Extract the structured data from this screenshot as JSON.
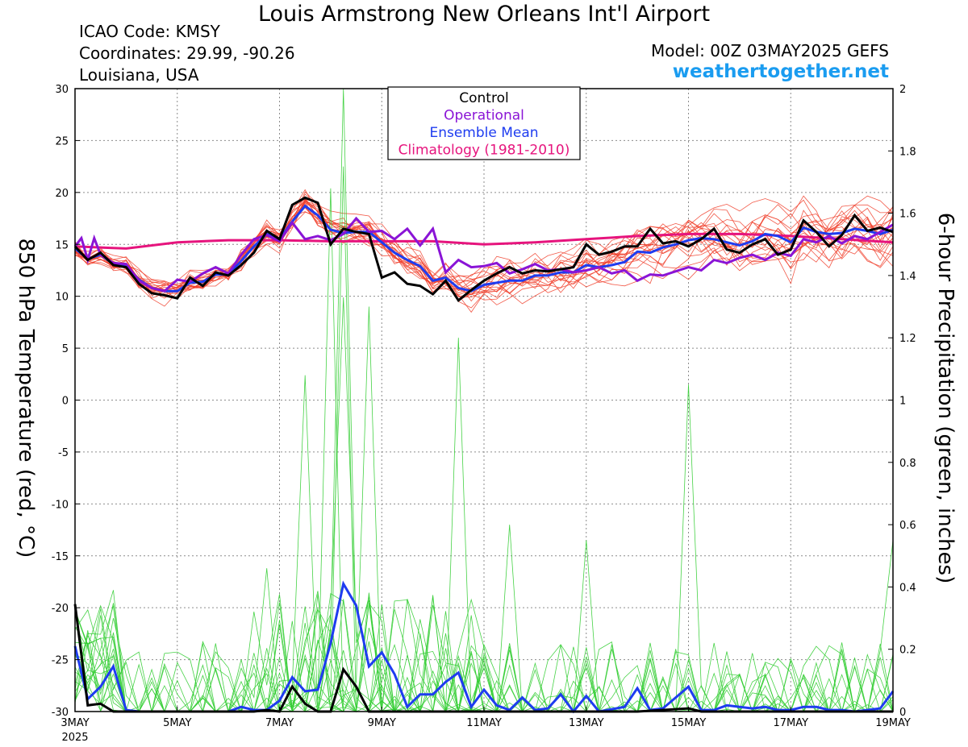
{
  "header": {
    "title": "Louis Armstrong New Orleans Int'l Airport",
    "icao": "ICAO Code: KMSY",
    "coords": "Coordinates: 29.99, -90.26",
    "region": "Louisiana, USA",
    "model": "Model: 00Z 03MAY2025 GEFS",
    "site": "weathertogether.net"
  },
  "chart_data": {
    "type": "line",
    "x_unit": "days since 3 May 2025 00Z",
    "xlim": [
      0,
      16
    ],
    "x_ticks": [
      {
        "x": 0,
        "label": "3MAY",
        "sub": "2025"
      },
      {
        "x": 2,
        "label": "5MAY"
      },
      {
        "x": 4,
        "label": "7MAY"
      },
      {
        "x": 6,
        "label": "9MAY"
      },
      {
        "x": 8,
        "label": "11MAY"
      },
      {
        "x": 10,
        "label": "13MAY"
      },
      {
        "x": 12,
        "label": "15MAY"
      },
      {
        "x": 14,
        "label": "17MAY"
      },
      {
        "x": 16,
        "label": "19MAY"
      }
    ],
    "y_left": {
      "label": "850 hPa Temperature (red, °C)",
      "lim": [
        -30,
        30
      ],
      "ticks": [
        -30,
        -25,
        -20,
        -15,
        -10,
        -5,
        0,
        5,
        10,
        15,
        20,
        25,
        30
      ]
    },
    "y_right": {
      "label": "6-hour Precipitation (green, inches)",
      "lim": [
        0,
        2
      ],
      "ticks": [
        "0",
        "0.2",
        "0.4",
        "0.6",
        "0.8",
        "1",
        "1.2",
        "1.4",
        "1.6",
        "1.8",
        "2"
      ]
    },
    "grid": true,
    "legend": {
      "position": "top-center",
      "entries": [
        {
          "name": "Control",
          "color": "#000000"
        },
        {
          "name": "Operational",
          "color": "#8a14d6"
        },
        {
          "name": "Ensemble Mean",
          "color": "#1e3cf0"
        },
        {
          "name": "Climatology (1981-2010)",
          "color": "#e6147d"
        }
      ]
    },
    "colors": {
      "ensemble_temp": "#f03c28",
      "ensemble_precip": "#32cd32",
      "control": "#000000",
      "operational": "#8a14d6",
      "mean": "#1e3cf0",
      "climatology": "#e6147d"
    },
    "temperature": {
      "control": [
        [
          0,
          14.8
        ],
        [
          0.25,
          13.5
        ],
        [
          0.5,
          14.2
        ],
        [
          0.75,
          13
        ],
        [
          1,
          12.8
        ],
        [
          1.25,
          11.2
        ],
        [
          1.5,
          10.3
        ],
        [
          1.75,
          10.1
        ],
        [
          2,
          9.8
        ],
        [
          2.25,
          11.8
        ],
        [
          2.5,
          11
        ],
        [
          2.75,
          12.3
        ],
        [
          3,
          12
        ],
        [
          3.25,
          13
        ],
        [
          3.5,
          14.2
        ],
        [
          3.75,
          16.3
        ],
        [
          4,
          15.5
        ],
        [
          4.25,
          18.8
        ],
        [
          4.5,
          19.5
        ],
        [
          4.75,
          19
        ],
        [
          5,
          15
        ],
        [
          5.25,
          16.5
        ],
        [
          5.5,
          16.2
        ],
        [
          5.75,
          16
        ],
        [
          6,
          11.8
        ],
        [
          6.25,
          12.3
        ],
        [
          6.5,
          11.2
        ],
        [
          6.75,
          11
        ],
        [
          7,
          10.2
        ],
        [
          7.25,
          11.5
        ],
        [
          7.5,
          9.6
        ],
        [
          7.75,
          10.6
        ],
        [
          8,
          11.5
        ],
        [
          8.25,
          12.2
        ],
        [
          8.5,
          12.8
        ],
        [
          8.75,
          12.2
        ],
        [
          9,
          12.5
        ],
        [
          9.25,
          12.4
        ],
        [
          9.5,
          12.6
        ],
        [
          9.75,
          12.8
        ],
        [
          10,
          15
        ],
        [
          10.25,
          14
        ],
        [
          10.5,
          14.3
        ],
        [
          10.75,
          14.8
        ],
        [
          11,
          14.8
        ],
        [
          11.25,
          16.5
        ],
        [
          11.5,
          15.1
        ],
        [
          11.75,
          15.3
        ],
        [
          12,
          14.8
        ],
        [
          12.25,
          15.5
        ],
        [
          12.5,
          16.5
        ],
        [
          12.75,
          14.5
        ],
        [
          13,
          14.2
        ],
        [
          13.25,
          15
        ],
        [
          13.5,
          15.5
        ],
        [
          13.75,
          14
        ],
        [
          14,
          14.5
        ],
        [
          14.25,
          17.3
        ],
        [
          14.5,
          16.2
        ],
        [
          14.75,
          14.8
        ],
        [
          15,
          15.9
        ],
        [
          15.25,
          17.8
        ],
        [
          15.5,
          16.3
        ],
        [
          15.75,
          16.6
        ],
        [
          16,
          16.2
        ]
      ],
      "operational": [
        [
          0,
          14.8
        ],
        [
          0.125,
          15.6
        ],
        [
          0.25,
          13.5
        ],
        [
          0.375,
          15.6
        ],
        [
          0.5,
          14
        ],
        [
          0.75,
          13.2
        ],
        [
          1,
          13.1
        ],
        [
          1.25,
          11.5
        ],
        [
          1.5,
          10.8
        ],
        [
          1.75,
          10.5
        ],
        [
          2,
          11.6
        ],
        [
          2.25,
          11.4
        ],
        [
          2.5,
          12.2
        ],
        [
          2.75,
          12.8
        ],
        [
          3,
          12.2
        ],
        [
          3.25,
          14
        ],
        [
          3.5,
          15.5
        ],
        [
          3.75,
          15.9
        ],
        [
          4,
          15.3
        ],
        [
          4.25,
          17.1
        ],
        [
          4.5,
          15.5
        ],
        [
          4.75,
          15.8
        ],
        [
          5,
          15.4
        ],
        [
          5.25,
          16
        ],
        [
          5.5,
          17.5
        ],
        [
          5.75,
          16.2
        ],
        [
          6,
          16.3
        ],
        [
          6.25,
          15.5
        ],
        [
          6.5,
          16.5
        ],
        [
          6.75,
          14.9
        ],
        [
          7,
          16.5
        ],
        [
          7.25,
          12.3
        ],
        [
          7.5,
          13.5
        ],
        [
          7.75,
          12.8
        ],
        [
          8,
          12.9
        ],
        [
          8.25,
          13.2
        ],
        [
          8.5,
          12.2
        ],
        [
          8.75,
          12.6
        ],
        [
          9,
          13.1
        ],
        [
          9.25,
          12.5
        ],
        [
          9.5,
          12.6
        ],
        [
          9.75,
          12.3
        ],
        [
          10,
          12.5
        ],
        [
          10.25,
          12.8
        ],
        [
          10.5,
          12.2
        ],
        [
          10.75,
          12.5
        ],
        [
          11,
          11.5
        ],
        [
          11.25,
          12.1
        ],
        [
          11.5,
          12
        ],
        [
          11.75,
          12.4
        ],
        [
          12,
          12.8
        ],
        [
          12.25,
          12.5
        ],
        [
          12.5,
          13.5
        ],
        [
          12.75,
          13.2
        ],
        [
          13,
          13.7
        ],
        [
          13.25,
          14
        ],
        [
          13.5,
          13.5
        ],
        [
          13.75,
          14.2
        ],
        [
          14,
          13.9
        ],
        [
          14.25,
          15.5
        ],
        [
          14.5,
          15.2
        ],
        [
          14.75,
          15.8
        ],
        [
          15,
          15.1
        ],
        [
          15.25,
          15.8
        ],
        [
          15.5,
          15.5
        ],
        [
          15.75,
          16.2
        ],
        [
          16,
          16.9
        ]
      ],
      "mean": [
        [
          0,
          14.6
        ],
        [
          0.25,
          13.6
        ],
        [
          0.5,
          14
        ],
        [
          0.75,
          13.1
        ],
        [
          1,
          12.9
        ],
        [
          1.25,
          11.6
        ],
        [
          1.5,
          10.8
        ],
        [
          1.75,
          10.5
        ],
        [
          2,
          10.5
        ],
        [
          2.25,
          11.3
        ],
        [
          2.5,
          11.4
        ],
        [
          2.75,
          12.1
        ],
        [
          3,
          12.1
        ],
        [
          3.25,
          13.4
        ],
        [
          3.5,
          14.8
        ],
        [
          3.75,
          16
        ],
        [
          4,
          15.5
        ],
        [
          4.25,
          17.2
        ],
        [
          4.5,
          18.7
        ],
        [
          4.75,
          17.8
        ],
        [
          5,
          16.4
        ],
        [
          5.25,
          16.1
        ],
        [
          5.5,
          16.2
        ],
        [
          5.75,
          16.2
        ],
        [
          6,
          15.2
        ],
        [
          6.25,
          14.2
        ],
        [
          6.5,
          13.5
        ],
        [
          6.75,
          12.9
        ],
        [
          7,
          11.5
        ],
        [
          7.25,
          11.8
        ],
        [
          7.5,
          10.8
        ],
        [
          7.75,
          10.5
        ],
        [
          8,
          11.1
        ],
        [
          8.25,
          11.3
        ],
        [
          8.5,
          11.5
        ],
        [
          8.75,
          11.5
        ],
        [
          9,
          12
        ],
        [
          9.25,
          12
        ],
        [
          9.5,
          12.3
        ],
        [
          9.75,
          12.3
        ],
        [
          10,
          13
        ],
        [
          10.25,
          12.8
        ],
        [
          10.5,
          13
        ],
        [
          10.75,
          13.3
        ],
        [
          11,
          14.3
        ],
        [
          11.25,
          14.2
        ],
        [
          11.5,
          14.7
        ],
        [
          11.75,
          15
        ],
        [
          12,
          15.4
        ],
        [
          12.25,
          15.6
        ],
        [
          12.5,
          15.5
        ],
        [
          12.75,
          15.2
        ],
        [
          13,
          14.9
        ],
        [
          13.25,
          15.3
        ],
        [
          13.5,
          16
        ],
        [
          13.75,
          15.8
        ],
        [
          14,
          15.2
        ],
        [
          14.25,
          16.6
        ],
        [
          14.5,
          16.2
        ],
        [
          14.75,
          16
        ],
        [
          15,
          16.1
        ],
        [
          15.25,
          16.5
        ],
        [
          15.5,
          16.3
        ],
        [
          15.75,
          16
        ],
        [
          16,
          16.4
        ]
      ],
      "climatology": [
        [
          0,
          14.8
        ],
        [
          1,
          14.6
        ],
        [
          2,
          15.2
        ],
        [
          3,
          15.4
        ],
        [
          4,
          15.4
        ],
        [
          5,
          15.3
        ],
        [
          6,
          15.3
        ],
        [
          7,
          15.3
        ],
        [
          8,
          15
        ],
        [
          9,
          15.2
        ],
        [
          10,
          15.5
        ],
        [
          11,
          15.8
        ],
        [
          12,
          16
        ],
        [
          13,
          16
        ],
        [
          14,
          15.8
        ],
        [
          15,
          15.5
        ],
        [
          16,
          15.2
        ]
      ]
    },
    "precipitation": {
      "control": [
        [
          0,
          0.345
        ],
        [
          0.25,
          0.02
        ],
        [
          0.5,
          0.025
        ],
        [
          0.75,
          0
        ],
        [
          1,
          0
        ],
        [
          2,
          0
        ],
        [
          3,
          0
        ],
        [
          3.5,
          0
        ],
        [
          3.75,
          0.005
        ],
        [
          4,
          0
        ],
        [
          4.25,
          0.08
        ],
        [
          4.5,
          0.025
        ],
        [
          4.75,
          0
        ],
        [
          5,
          0
        ],
        [
          5.25,
          0.135
        ],
        [
          5.5,
          0.08
        ],
        [
          5.75,
          0
        ],
        [
          6,
          0
        ],
        [
          7,
          0
        ],
        [
          8,
          0
        ],
        [
          9,
          0
        ],
        [
          10,
          0
        ],
        [
          11,
          0
        ],
        [
          12,
          0.01
        ],
        [
          12.25,
          0
        ],
        [
          13,
          0
        ],
        [
          14,
          0
        ],
        [
          15,
          0
        ],
        [
          16,
          0
        ]
      ],
      "mean": [
        [
          0,
          0.21
        ],
        [
          0.25,
          0.04
        ],
        [
          0.5,
          0.08
        ],
        [
          0.75,
          0.145
        ],
        [
          1,
          0.005
        ],
        [
          1.25,
          0
        ],
        [
          2,
          0
        ],
        [
          3,
          0
        ],
        [
          3.25,
          0.015
        ],
        [
          3.5,
          0.005
        ],
        [
          3.75,
          0.005
        ],
        [
          4,
          0.035
        ],
        [
          4.25,
          0.11
        ],
        [
          4.5,
          0.065
        ],
        [
          4.75,
          0.07
        ],
        [
          5,
          0.22
        ],
        [
          5.25,
          0.41
        ],
        [
          5.5,
          0.34
        ],
        [
          5.75,
          0.145
        ],
        [
          6,
          0.19
        ],
        [
          6.25,
          0.12
        ],
        [
          6.5,
          0.015
        ],
        [
          6.75,
          0.055
        ],
        [
          7,
          0.055
        ],
        [
          7.25,
          0.095
        ],
        [
          7.5,
          0.125
        ],
        [
          7.75,
          0.015
        ],
        [
          8,
          0.07
        ],
        [
          8.25,
          0.02
        ],
        [
          8.5,
          0.005
        ],
        [
          8.75,
          0.045
        ],
        [
          9,
          0.005
        ],
        [
          9.25,
          0.01
        ],
        [
          9.5,
          0.055
        ],
        [
          9.75,
          0
        ],
        [
          10,
          0.05
        ],
        [
          10.25,
          0
        ],
        [
          10.75,
          0.015
        ],
        [
          11,
          0.075
        ],
        [
          11.25,
          0.005
        ],
        [
          11.5,
          0.01
        ],
        [
          11.75,
          0.045
        ],
        [
          12,
          0.08
        ],
        [
          12.25,
          0.005
        ],
        [
          12.5,
          0.005
        ],
        [
          12.75,
          0.02
        ],
        [
          13,
          0.015
        ],
        [
          13.25,
          0.01
        ],
        [
          13.5,
          0.015
        ],
        [
          13.75,
          0.005
        ],
        [
          14,
          0.005
        ],
        [
          14.25,
          0.015
        ],
        [
          14.5,
          0.015
        ],
        [
          14.75,
          0.005
        ],
        [
          15,
          0.005
        ],
        [
          15.25,
          0
        ],
        [
          15.5,
          0.005
        ],
        [
          15.75,
          0.01
        ],
        [
          16,
          0.065
        ]
      ]
    },
    "ensemble": {
      "members": 20,
      "temp_spread": 1.8,
      "precip_peaks": [
        {
          "x": 5.25,
          "y": 2.0
        },
        {
          "x": 5.25,
          "y": 1.75
        },
        {
          "x": 5,
          "y": 1.68
        },
        {
          "x": 5.25,
          "y": 1.33
        },
        {
          "x": 4.5,
          "y": 1.08
        },
        {
          "x": 5.75,
          "y": 1.3
        },
        {
          "x": 7.5,
          "y": 1.2
        },
        {
          "x": 12,
          "y": 1.05
        },
        {
          "x": 0.75,
          "y": 0.39
        },
        {
          "x": 8.5,
          "y": 0.6
        },
        {
          "x": 10,
          "y": 0.55
        },
        {
          "x": 16,
          "y": 0.55
        },
        {
          "x": 3.75,
          "y": 0.46
        }
      ]
    }
  }
}
